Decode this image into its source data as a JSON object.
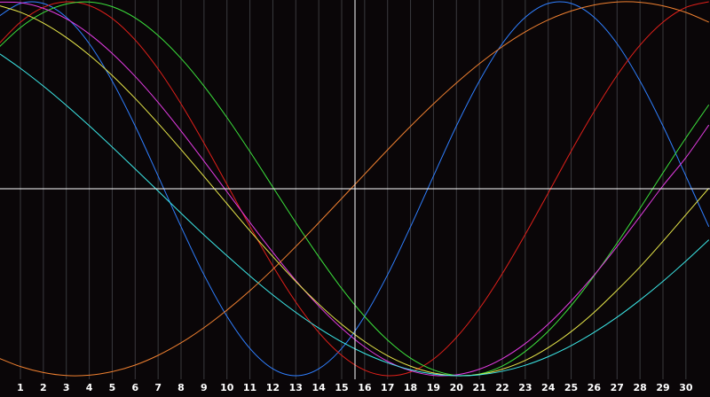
{
  "chart_data": {
    "type": "line",
    "x": [
      0,
      1,
      2,
      3,
      4,
      5,
      6,
      7,
      8,
      9,
      10,
      11,
      12,
      13,
      14,
      15,
      16,
      17,
      18,
      19,
      20,
      21,
      22,
      23,
      24,
      25,
      26,
      27,
      28,
      29,
      30,
      31
    ],
    "xlim": [
      0.11,
      31.05
    ],
    "xticks": [
      1,
      2,
      3,
      4,
      5,
      6,
      7,
      8,
      9,
      10,
      11,
      12,
      13,
      14,
      15,
      16,
      17,
      18,
      19,
      20,
      21,
      22,
      23,
      24,
      25,
      26,
      27,
      28,
      29,
      30
    ],
    "ylim": [
      -1,
      1
    ],
    "grid": true,
    "series": [
      {
        "color": "#2f7fff",
        "values": [
          0.917,
          0.991,
          0.991,
          0.917,
          0.776,
          0.576,
          0.336,
          0.068,
          -0.203,
          -0.46,
          -0.682,
          -0.854,
          -0.963,
          -1,
          -0.963,
          -0.854,
          -0.682,
          -0.46,
          -0.203,
          0.068,
          0.336,
          0.576,
          0.776,
          0.917,
          0.991,
          0.991,
          0.917,
          0.776,
          0.576,
          0.336,
          0.068,
          -0.203
        ]
      },
      {
        "color": "#e0201a",
        "values": [
          0.767,
          0.891,
          0.97,
          1,
          0.98,
          0.911,
          0.796,
          0.641,
          0.454,
          0.244,
          0.023,
          -0.201,
          -0.413,
          -0.606,
          -0.768,
          -0.891,
          -0.97,
          -1,
          -0.98,
          -0.911,
          -0.795,
          -0.641,
          -0.454,
          -0.244,
          -0.023,
          0.201,
          0.413,
          0.606,
          0.768,
          0.891,
          0.97,
          1
        ]
      },
      {
        "color": "#3ce23c",
        "values": [
          0.749,
          0.862,
          0.942,
          0.988,
          0.999,
          0.974,
          0.914,
          0.82,
          0.697,
          0.549,
          0.381,
          0.199,
          0.009,
          -0.181,
          -0.363,
          -0.533,
          -0.683,
          -0.809,
          -0.906,
          -0.969,
          -0.998,
          -0.991,
          -0.948,
          -0.87,
          -0.762,
          -0.625,
          -0.466,
          -0.291,
          -0.105,
          0.085,
          0.272,
          0.449
        ]
      },
      {
        "color": "#e43ce4",
        "values": [
          0.998,
          0.995,
          0.965,
          0.909,
          0.828,
          0.724,
          0.601,
          0.462,
          0.309,
          0.148,
          -0.016,
          -0.18,
          -0.34,
          -0.491,
          -0.627,
          -0.746,
          -0.846,
          -0.923,
          -0.973,
          -0.998,
          -0.995,
          -0.965,
          -0.909,
          -0.828,
          -0.724,
          -0.6,
          -0.462,
          -0.309,
          -0.148,
          0.016,
          0.167,
          0.341
        ]
      },
      {
        "color": "#e8e84a",
        "values": [
          0.982,
          0.944,
          0.886,
          0.809,
          0.715,
          0.606,
          0.483,
          0.35,
          0.21,
          0.066,
          -0.08,
          -0.225,
          -0.363,
          -0.496,
          -0.617,
          -0.725,
          -0.817,
          -0.893,
          -0.949,
          -0.985,
          -1,
          -0.993,
          -0.965,
          -0.918,
          -0.85,
          -0.764,
          -0.661,
          -0.543,
          -0.418,
          -0.281,
          -0.139,
          0.003
        ]
      },
      {
        "color": "#3ce8e8",
        "values": [
          0.73,
          0.644,
          0.549,
          0.446,
          0.337,
          0.223,
          0.106,
          -0.012,
          -0.131,
          -0.247,
          -0.358,
          -0.466,
          -0.568,
          -0.661,
          -0.745,
          -0.819,
          -0.881,
          -0.931,
          -0.968,
          -0.991,
          -1,
          -0.995,
          -0.976,
          -0.944,
          -0.898,
          -0.839,
          -0.768,
          -0.687,
          -0.595,
          -0.495,
          -0.387,
          -0.273
        ]
      },
      {
        "color": "#f08030",
        "values": [
          -0.903,
          -0.951,
          -0.983,
          -0.999,
          -0.997,
          -0.978,
          -0.943,
          -0.891,
          -0.824,
          -0.743,
          -0.649,
          -0.545,
          -0.431,
          -0.309,
          -0.182,
          -0.052,
          0.078,
          0.208,
          0.334,
          0.454,
          0.566,
          0.669,
          0.76,
          0.839,
          0.903,
          0.951,
          0.983,
          0.999,
          0.997,
          0.978,
          0.943,
          0.891
        ]
      }
    ]
  }
}
